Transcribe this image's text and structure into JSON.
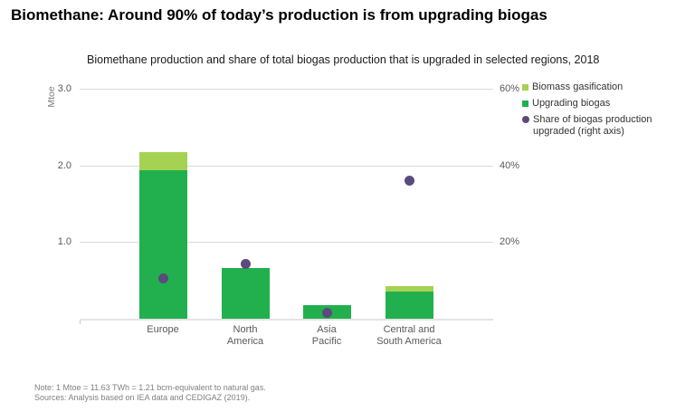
{
  "title": "Biomethane: Around 90% of today’s production is from upgrading biogas",
  "subtitle": "Biomethane production and share of total biogas production that is upgraded in selected regions, 2018",
  "notes": {
    "note": "Note: 1 Mtoe = 11.63 TWh = 1.21 bcm-equivalent to natural gas.",
    "sources": "Sources: Analysis based on IEA data and CEDIGAZ (2019)."
  },
  "colors": {
    "upgrading_biogas": "#22b04e",
    "biomass_gasification": "#a5d253",
    "share_dot": "#5b4a7e",
    "gridline": "#d9d9d9",
    "axis_text": "#595959"
  },
  "legend": {
    "items": [
      {
        "label": "Biomass gasification",
        "label_lines": [
          "Biomass gasification"
        ],
        "marker": "square",
        "color_key": "biomass_gasification"
      },
      {
        "label": "Upgrading biogas",
        "label_lines": [
          "Upgrading biogas"
        ],
        "marker": "square",
        "color_key": "upgrading_biogas"
      },
      {
        "label": "Share of biogas production upgraded (right axis)",
        "label_lines": [
          "Share of biogas production",
          "upgraded (right axis)"
        ],
        "marker": "circle",
        "color_key": "share_dot"
      }
    ]
  },
  "chart_data": {
    "type": "bar",
    "overlay_type": "scatter",
    "title": "Biomethane production and share of total biogas production that is upgraded in selected regions, 2018",
    "categories": [
      "Europe",
      "North America",
      "Asia Pacific",
      "Central and South America"
    ],
    "category_label_lines": [
      [
        "Europe"
      ],
      [
        "North",
        "America"
      ],
      [
        "Asia",
        "Pacific"
      ],
      [
        "Central and",
        "South America"
      ]
    ],
    "series": [
      {
        "name": "Upgrading biogas",
        "kind": "bar",
        "axis": "left",
        "color_key": "upgrading_biogas",
        "values": [
          1.94,
          0.66,
          0.18,
          0.35
        ]
      },
      {
        "name": "Biomass gasification",
        "kind": "bar-stacked-top",
        "axis": "left",
        "color_key": "biomass_gasification",
        "values": [
          0.23,
          0,
          0,
          0.08
        ]
      },
      {
        "name": "Share of biogas production upgraded (right axis)",
        "kind": "scatter",
        "axis": "right",
        "color_key": "share_dot",
        "values": [
          10.5,
          14.4,
          1.5,
          36
        ]
      }
    ],
    "left_axis": {
      "unit": "Mtoe",
      "min": 0,
      "max": 3.0,
      "ticks": [
        "3.0",
        "2.0",
        "1.0"
      ],
      "tick_values": [
        3.0,
        2.0,
        1.0
      ]
    },
    "right_axis": {
      "min": 0,
      "max": 60,
      "ticks": [
        "60%",
        "40%",
        "20%"
      ],
      "tick_values": [
        60,
        40,
        20
      ]
    },
    "grid": "horizontal-only",
    "legend_position": "top-right"
  }
}
